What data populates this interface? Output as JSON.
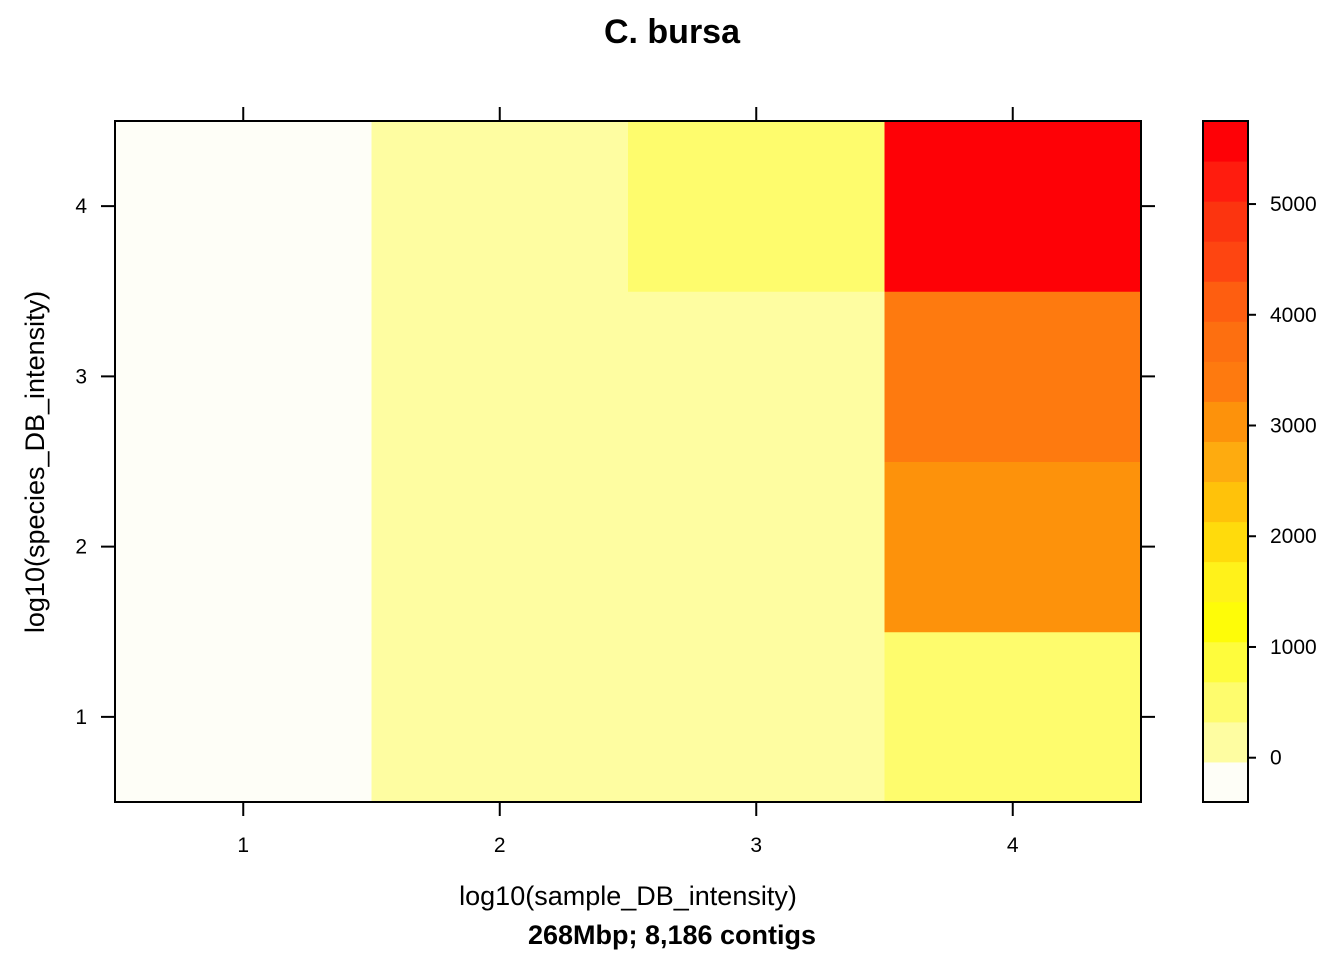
{
  "chart_data": {
    "type": "heatmap",
    "title": "C. bursa",
    "xlabel": "log10(sample_DB_intensity)",
    "ylabel": "log10(species_DB_intensity)",
    "subtitle": "268Mbp; 8,186 contigs",
    "x_categories": [
      1,
      2,
      3,
      4
    ],
    "y_categories": [
      1,
      2,
      3,
      4
    ],
    "x_tick_labels": [
      "1",
      "2",
      "3",
      "4"
    ],
    "y_tick_labels": [
      "1",
      "2",
      "3",
      "4"
    ],
    "values": [
      [
        -300,
        150,
        150,
        600
      ],
      [
        -300,
        150,
        150,
        2900
      ],
      [
        -300,
        150,
        150,
        3400
      ],
      [
        -300,
        150,
        600,
        5650
      ]
    ],
    "colorbar": {
      "range": [
        -400,
        5750
      ],
      "ticks": [
        0,
        1000,
        2000,
        3000,
        4000,
        5000
      ],
      "tick_labels": [
        "0",
        "1000",
        "2000",
        "3000",
        "4000",
        "5000"
      ],
      "colors": [
        "#FEFEF7",
        "#FEFDA1",
        "#FEFC6D",
        "#FEFC3C",
        "#FEFC08",
        "#FFF21A",
        "#FFDB0C",
        "#FFC20A",
        "#FEAB0F",
        "#FD920B",
        "#FE7A0F",
        "#FD6F10",
        "#FE5E10",
        "#FE4511",
        "#FC340F",
        "#FF1C0E",
        "#FE0106"
      ]
    }
  }
}
